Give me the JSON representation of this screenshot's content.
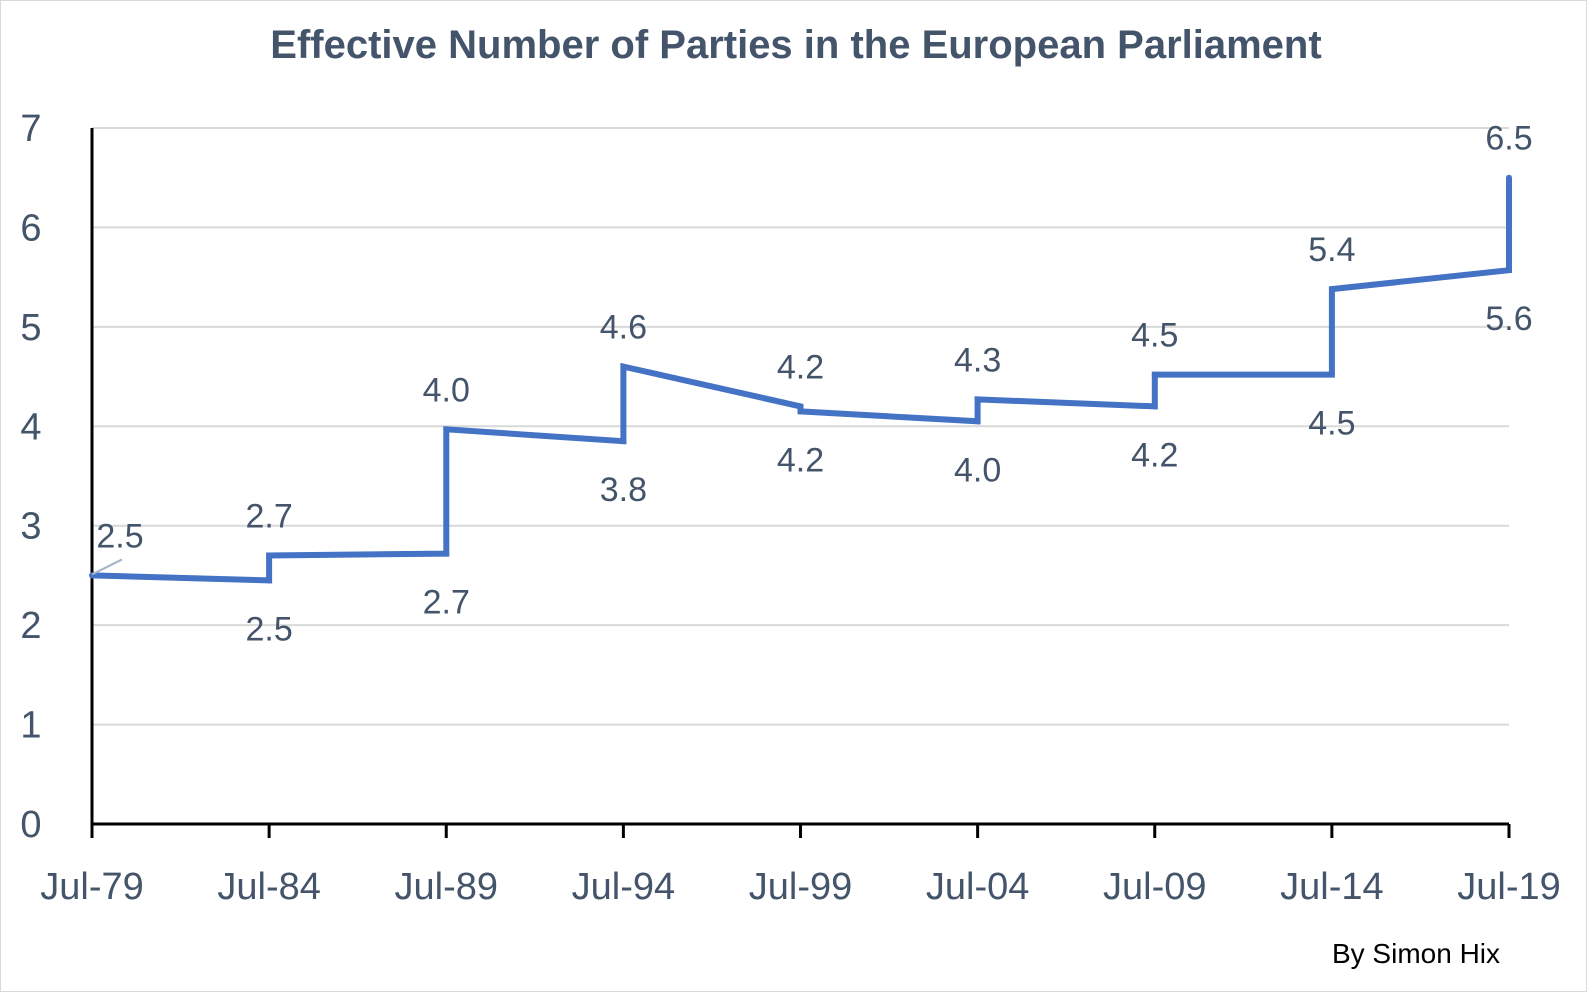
{
  "chart_data": {
    "type": "line",
    "title": "Effective Number of Parties in the European Parliament",
    "credit": "By Simon  Hix",
    "xlabel": "",
    "ylabel": "",
    "ylim": [
      0,
      7
    ],
    "yticks": [
      "0",
      "1",
      "2",
      "3",
      "4",
      "5",
      "6",
      "7"
    ],
    "x_ticks": [
      "Jul-79",
      "Jul-84",
      "Jul-89",
      "Jul-94",
      "Jul-99",
      "Jul-04",
      "Jul-09",
      "Jul-14",
      "Jul-19"
    ],
    "grid": true,
    "series": [
      {
        "color": "#4472c4",
        "points": [
          {
            "x": "Jul-79",
            "y": 2.5
          },
          {
            "x": "Jul-84",
            "y": 2.45
          },
          {
            "x": "Jul-84",
            "y": 2.7
          },
          {
            "x": "Jul-89",
            "y": 2.72
          },
          {
            "x": "Jul-89",
            "y": 3.97
          },
          {
            "x": "Jul-94",
            "y": 3.85
          },
          {
            "x": "Jul-94",
            "y": 4.6
          },
          {
            "x": "Jul-99",
            "y": 4.2
          },
          {
            "x": "Jul-99",
            "y": 4.15
          },
          {
            "x": "Jul-04",
            "y": 4.05
          },
          {
            "x": "Jul-04",
            "y": 4.27
          },
          {
            "x": "Jul-09",
            "y": 4.2
          },
          {
            "x": "Jul-09",
            "y": 4.52
          },
          {
            "x": "Jul-14",
            "y": 4.52
          },
          {
            "x": "Jul-14",
            "y": 5.38
          },
          {
            "x": "Jul-19",
            "y": 5.57
          },
          {
            "x": "Jul-19",
            "y": 6.5
          }
        ]
      }
    ],
    "data_labels": [
      {
        "x": "Jul-79",
        "text": "2.5",
        "position": "above"
      },
      {
        "x": "Jul-84",
        "text": "2.7",
        "position": "above"
      },
      {
        "x": "Jul-84",
        "text": "2.5",
        "position": "below"
      },
      {
        "x": "Jul-89",
        "text": "4.0",
        "position": "above"
      },
      {
        "x": "Jul-89",
        "text": "2.7",
        "position": "below"
      },
      {
        "x": "Jul-94",
        "text": "4.6",
        "position": "above"
      },
      {
        "x": "Jul-94",
        "text": "3.8",
        "position": "below"
      },
      {
        "x": "Jul-99",
        "text": "4.2",
        "position": "above"
      },
      {
        "x": "Jul-99",
        "text": "4.2",
        "position": "below"
      },
      {
        "x": "Jul-04",
        "text": "4.3",
        "position": "above"
      },
      {
        "x": "Jul-04",
        "text": "4.0",
        "position": "below"
      },
      {
        "x": "Jul-09",
        "text": "4.5",
        "position": "above"
      },
      {
        "x": "Jul-09",
        "text": "4.2",
        "position": "below"
      },
      {
        "x": "Jul-14",
        "text": "5.4",
        "position": "above"
      },
      {
        "x": "Jul-14",
        "text": "4.5",
        "position": "below"
      },
      {
        "x": "Jul-19",
        "text": "6.5",
        "position": "above"
      },
      {
        "x": "Jul-19",
        "text": "5.6",
        "position": "below"
      }
    ]
  }
}
